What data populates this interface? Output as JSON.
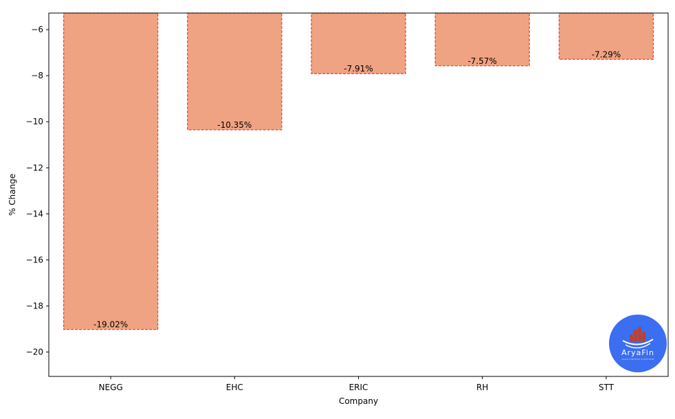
{
  "chart_data": {
    "type": "bar",
    "categories": [
      "NEGG",
      "EHC",
      "ERIC",
      "RH",
      "STT"
    ],
    "values": [
      -19.02,
      -10.35,
      -7.91,
      -7.57,
      -7.29
    ],
    "data_labels": [
      "-19.02%",
      "-10.35%",
      "-7.91%",
      "-7.57%",
      "-7.29%"
    ],
    "xlabel": "Company",
    "ylabel": "% Change",
    "ylim": [
      -21.06,
      -5.28
    ],
    "yticks": [
      -6,
      -8,
      -10,
      -12,
      -14,
      -16,
      -18,
      -20
    ],
    "ytick_labels": [
      "−6",
      "−8",
      "−10",
      "−12",
      "−14",
      "−16",
      "−18",
      "−20"
    ],
    "bar_color": "#f0a382",
    "bar_edge_color": "#e8473a",
    "bar_edge_style": "dashed",
    "grid": false,
    "legend": "none"
  },
  "watermark": {
    "name": "AryaFin",
    "tagline": "YOUR FINTECH PLATFORM",
    "color": "#3b6ef0",
    "icon": "buildings-chart-icon"
  }
}
